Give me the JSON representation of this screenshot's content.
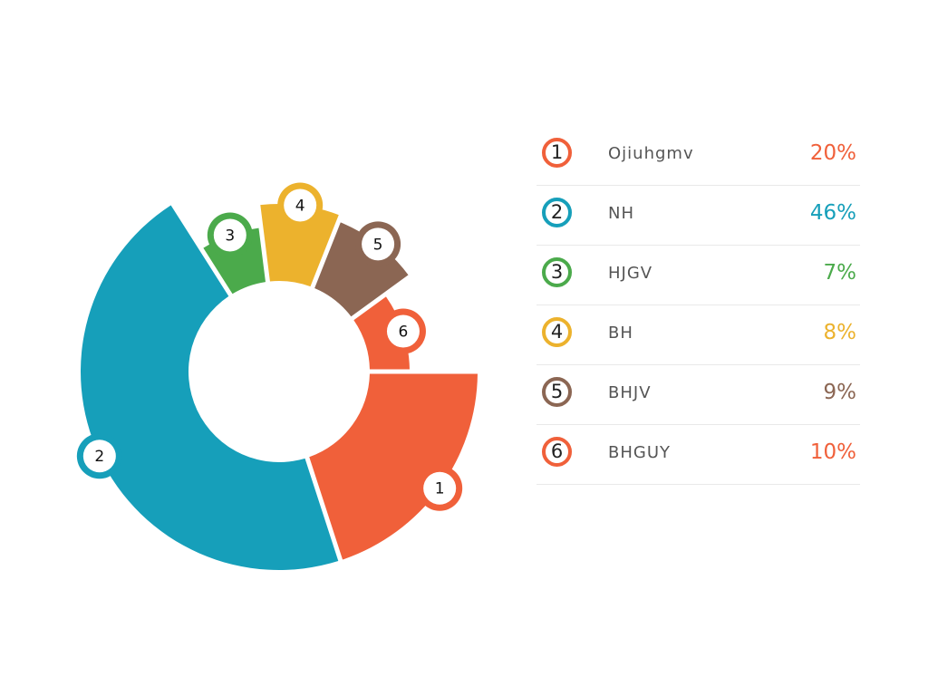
{
  "colors": {
    "orange": "#F0603A",
    "teal": "#169FBA",
    "green": "#4BAA4B",
    "yellow": "#ECB22D",
    "brown": "#8B6653"
  },
  "chart_data": {
    "type": "pie",
    "variant": "donut",
    "start_angle_deg": 0,
    "direction": "clockwise",
    "series": [
      {
        "number": "1",
        "name": "Ojiuhgmv",
        "value": 20,
        "value_label": "20%",
        "color": "#F0603A"
      },
      {
        "number": "2",
        "name": "NH",
        "value": 46,
        "value_label": "46%",
        "color": "#169FBA"
      },
      {
        "number": "3",
        "name": "HJGV",
        "value": 7,
        "value_label": "7%",
        "color": "#4BAA4B"
      },
      {
        "number": "4",
        "name": "BH",
        "value": 8,
        "value_label": "8%",
        "color": "#ECB22D"
      },
      {
        "number": "5",
        "name": "BHJV",
        "value": 9,
        "value_label": "9%",
        "color": "#8B6653"
      },
      {
        "number": "6",
        "name": "BHGUY",
        "value": 10,
        "value_label": "10%",
        "color": "#F0603A"
      }
    ],
    "legend": "right"
  }
}
